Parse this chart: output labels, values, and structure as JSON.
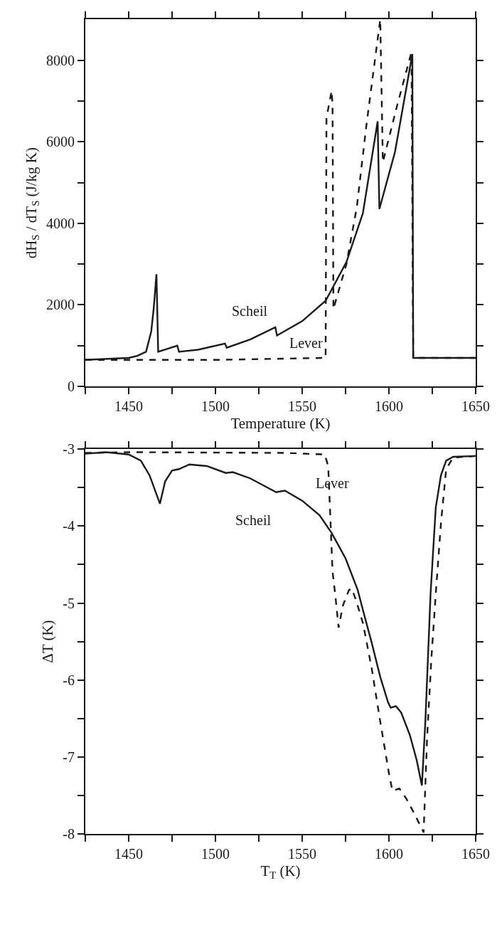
{
  "chart_data": [
    {
      "type": "line",
      "xlabel": "Temperature (K)",
      "ylabel": "dH$_{S}$ / dT$_{S}$ (J/kg K)",
      "xlim": [
        1425,
        1650
      ],
      "xticks": [
        {
          "value": 1425,
          "label": null
        },
        1450,
        {
          "value": 1475,
          "label": null
        },
        1500,
        {
          "value": 1525,
          "label": null
        },
        1550,
        {
          "value": 1575,
          "label": null
        },
        1600,
        {
          "value": 1625,
          "label": null
        },
        1650
      ],
      "ylim": [
        0,
        9000
      ],
      "yticks": [
        0,
        {
          "value": 1000,
          "label": null
        },
        2000,
        {
          "value": 3000,
          "label": null
        },
        4000,
        {
          "value": 5000,
          "label": null
        },
        6000,
        {
          "value": 7000,
          "label": null
        },
        8000
      ],
      "grid": false,
      "legend": false,
      "marker": "none",
      "series": [
        {
          "name": "Scheil",
          "color": "#1a1a1a",
          "line_style": "solid",
          "x": [
            1425,
            1450,
            1455,
            1460,
            1463,
            1464.5,
            1466,
            1467,
            1478,
            1479,
            1490,
            1505.5,
            1506.5,
            1520,
            1534.5,
            1535.5,
            1550,
            1563.5,
            1575.5,
            1585,
            1593.5,
            1594.5,
            1603.5,
            1613.5,
            1614,
            1630,
            1650
          ],
          "values": [
            650,
            700,
            750,
            850,
            1350,
            1950,
            2750,
            850,
            1000,
            850,
            900,
            1050,
            950,
            1150,
            1450,
            1250,
            1600,
            2100,
            3050,
            4250,
            6500,
            4350,
            5750,
            8150,
            700,
            700,
            700
          ]
        },
        {
          "name": "Lever",
          "color": "#1a1a1a",
          "line_style": "dashed",
          "x": [
            1425,
            1500,
            1563.5,
            1564,
            1564.5,
            1567,
            1567.5,
            1568,
            1575.5,
            1581.5,
            1587,
            1595,
            1596.5,
            1604.5,
            1613,
            1614,
            1630,
            1650
          ],
          "values": [
            650,
            650,
            700,
            6600,
            6700,
            7250,
            6900,
            1900,
            3000,
            4400,
            6400,
            9000,
            5500,
            6850,
            8200,
            700,
            700,
            700
          ]
        }
      ]
    },
    {
      "type": "line",
      "xlabel": "T$_{T}$ (K)",
      "ylabel": "ΔT (K)",
      "xlim": [
        1425,
        1650
      ],
      "xticks": [
        {
          "value": 1425,
          "label": null
        },
        1450,
        {
          "value": 1475,
          "label": null
        },
        1500,
        {
          "value": 1525,
          "label": null
        },
        1550,
        {
          "value": 1575,
          "label": null
        },
        1600,
        {
          "value": 1625,
          "label": null
        },
        1650
      ],
      "ylim": [
        -8,
        -3
      ],
      "yticks": [
        -8,
        {
          "value": -7.5,
          "label": null
        },
        -7,
        {
          "value": -6.5,
          "label": null
        },
        -6,
        {
          "value": -5.5,
          "label": null
        },
        -5,
        {
          "value": -4.5,
          "label": null
        },
        -4,
        {
          "value": -3.5,
          "label": null
        },
        -3
      ],
      "grid": false,
      "legend": false,
      "marker": "none",
      "series": [
        {
          "name": "Scheil",
          "color": "#1a1a1a",
          "line_style": "solid",
          "x": [
            1425,
            1437,
            1450,
            1457,
            1462,
            1468,
            1471,
            1475,
            1479,
            1485,
            1495,
            1506,
            1510,
            1520,
            1530,
            1535,
            1540,
            1550,
            1560,
            1567,
            1575,
            1582,
            1585,
            1590,
            1595,
            1599.5,
            1601,
            1604,
            1607,
            1612,
            1616,
            1619,
            1621,
            1624,
            1627,
            1630,
            1633,
            1637,
            1650
          ],
          "values": [
            -3.06,
            -3.04,
            -3.07,
            -3.15,
            -3.34,
            -3.71,
            -3.42,
            -3.28,
            -3.26,
            -3.2,
            -3.22,
            -3.31,
            -3.3,
            -3.38,
            -3.5,
            -3.56,
            -3.54,
            -3.67,
            -3.86,
            -4.09,
            -4.42,
            -4.83,
            -5.09,
            -5.51,
            -5.96,
            -6.29,
            -6.36,
            -6.34,
            -6.42,
            -6.71,
            -7.04,
            -7.37,
            -6.54,
            -4.88,
            -3.76,
            -3.34,
            -3.15,
            -3.1,
            -3.09
          ]
        },
        {
          "name": "Lever",
          "color": "#1a1a1a",
          "line_style": "dashed",
          "x": [
            1425,
            1450,
            1540,
            1563,
            1565,
            1566,
            1567.5,
            1569,
            1571,
            1573.5,
            1577,
            1578.5,
            1581,
            1585,
            1590,
            1595,
            1600,
            1602,
            1606,
            1610,
            1615,
            1620,
            1622,
            1624.5,
            1627,
            1630,
            1633,
            1637,
            1650
          ],
          "values": [
            -3.05,
            -3.04,
            -3.05,
            -3.07,
            -3.22,
            -3.76,
            -4.59,
            -4.88,
            -5.32,
            -5.03,
            -4.83,
            -4.81,
            -4.96,
            -5.26,
            -5.84,
            -6.54,
            -7.21,
            -7.44,
            -7.41,
            -7.54,
            -7.75,
            -7.98,
            -6.75,
            -5.71,
            -4.88,
            -3.96,
            -3.26,
            -3.11,
            -3.09
          ]
        }
      ]
    }
  ]
}
